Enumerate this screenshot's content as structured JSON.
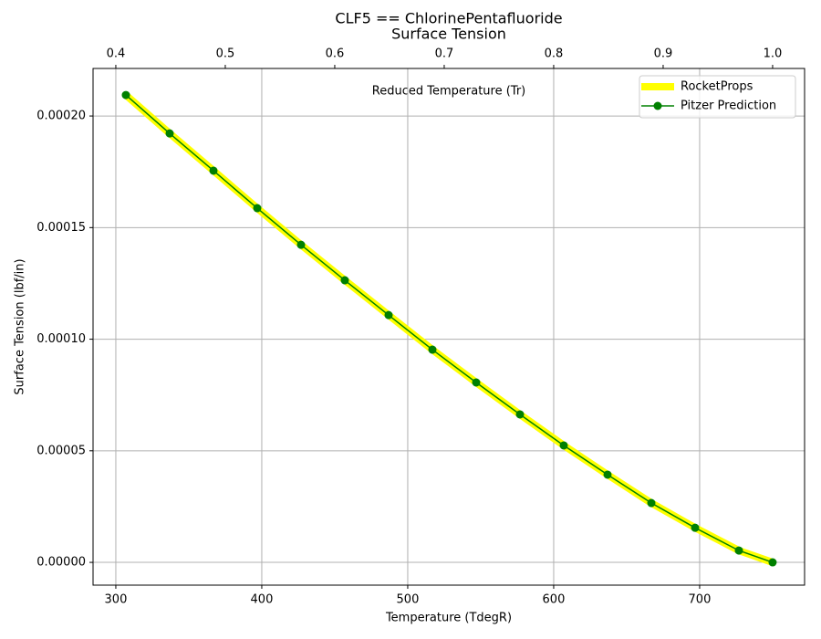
{
  "chart_data": {
    "type": "line",
    "title": "CLF5 == ChlorinePentafluoride",
    "subtitle": "Surface Tension",
    "x_label": "Temperature (TdegR)",
    "y_label": "Surface Tension (lbf/in)",
    "x2_label": "Reduced Temperature (Tr)",
    "xlim": [
      284.4,
      771.9
    ],
    "xticks": [
      300,
      400,
      500,
      600,
      700
    ],
    "x2lim": [
      0.3792,
      1.0292
    ],
    "x2ticks": [
      0.4,
      0.5,
      0.6,
      0.7,
      0.8,
      0.9,
      {
        "value": 1.0,
        "label": "1.0"
      }
    ],
    "ylim": [
      -1.02e-05,
      0.0002213
    ],
    "yticks": [
      {
        "value": 0,
        "label": "0.00000"
      },
      {
        "value": 5e-05,
        "label": "0.00005"
      },
      {
        "value": 0.0001,
        "label": "0.00010"
      },
      {
        "value": 0.00015,
        "label": "0.00015"
      },
      {
        "value": 0.0002,
        "label": "0.00020"
      }
    ],
    "grid": true,
    "legend": "upper right",
    "x": [
      306.9,
      336.9,
      366.9,
      396.9,
      426.9,
      456.9,
      486.9,
      516.9,
      546.9,
      576.9,
      606.9,
      636.9,
      666.9,
      696.9,
      726.9,
      750
    ],
    "series": [
      {
        "name": "RocketProps",
        "color": "#ffff00",
        "marker": false,
        "width": 8,
        "values": [
          0.0002094,
          0.0001922,
          0.0001755,
          0.0001587,
          0.0001423,
          0.0001264,
          0.0001108,
          9.53e-05,
          8.06e-05,
          6.63e-05,
          5.24e-05,
          3.93e-05,
          2.66e-05,
          1.55e-05,
          5.3e-06,
          0
        ]
      },
      {
        "name": "Pitzer Prediction",
        "color": "#008000",
        "marker": true,
        "width": 1.5,
        "values": [
          0.0002094,
          0.0001922,
          0.0001755,
          0.0001587,
          0.0001423,
          0.0001264,
          0.0001108,
          9.53e-05,
          8.06e-05,
          6.63e-05,
          5.24e-05,
          3.93e-05,
          2.66e-05,
          1.55e-05,
          5.3e-06,
          0
        ]
      }
    ]
  }
}
